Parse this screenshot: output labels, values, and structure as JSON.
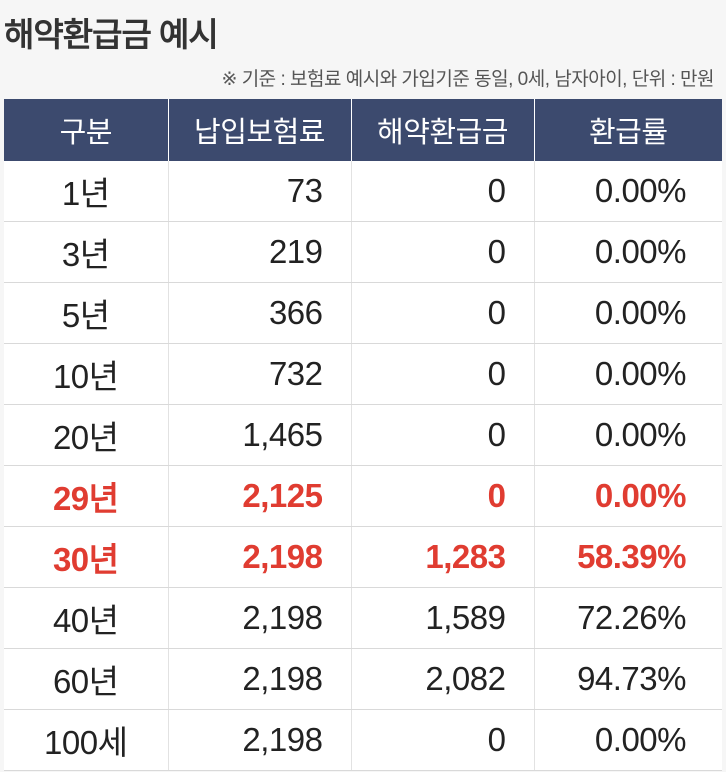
{
  "title": "해약환급금 예시",
  "note": "※ 기준 : 보험료 예시와 가입기준 동일, 0세, 남자아이, 단위 : 만원",
  "colors": {
    "header_bg": "#3c4a6e",
    "highlight": "#e03c31"
  },
  "table": {
    "headers": [
      "구분",
      "납입보험료",
      "해약환급금",
      "환급률"
    ],
    "rows": [
      {
        "period": "1년",
        "premium": "73",
        "refund": "0",
        "rate": "0.00%",
        "highlight": false
      },
      {
        "period": "3년",
        "premium": "219",
        "refund": "0",
        "rate": "0.00%",
        "highlight": false
      },
      {
        "period": "5년",
        "premium": "366",
        "refund": "0",
        "rate": "0.00%",
        "highlight": false
      },
      {
        "period": "10년",
        "premium": "732",
        "refund": "0",
        "rate": "0.00%",
        "highlight": false
      },
      {
        "period": "20년",
        "premium": "1,465",
        "refund": "0",
        "rate": "0.00%",
        "highlight": false
      },
      {
        "period": "29년",
        "premium": "2,125",
        "refund": "0",
        "rate": "0.00%",
        "highlight": true
      },
      {
        "period": "30년",
        "premium": "2,198",
        "refund": "1,283",
        "rate": "58.39%",
        "highlight": true
      },
      {
        "period": "40년",
        "premium": "2,198",
        "refund": "1,589",
        "rate": "72.26%",
        "highlight": false
      },
      {
        "period": "60년",
        "premium": "2,198",
        "refund": "2,082",
        "rate": "94.73%",
        "highlight": false
      },
      {
        "period": "100세",
        "premium": "2,198",
        "refund": "0",
        "rate": "0.00%",
        "highlight": false
      }
    ]
  }
}
